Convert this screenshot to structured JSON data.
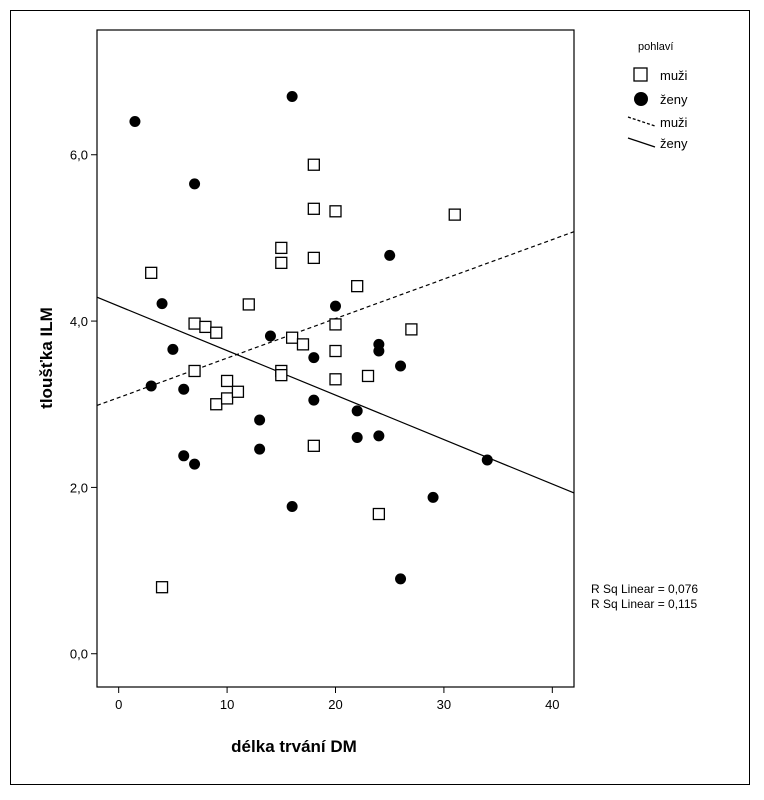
{
  "chart_data": {
    "type": "scatter",
    "xlabel": "délka trvání DM",
    "ylabel": "tloušťka ILM",
    "xlim": [
      -2,
      42
    ],
    "ylim": [
      -0.4,
      7.5
    ],
    "x_ticks": [
      0,
      10,
      20,
      30,
      40
    ],
    "y_ticks": [
      0.0,
      2.0,
      4.0,
      6.0
    ],
    "x_tick_labels": [
      "0",
      "10",
      "20",
      "30",
      "40"
    ],
    "y_tick_labels": [
      "0,0",
      "2,0",
      "4,0",
      "6,0"
    ],
    "grid": false,
    "legend": {
      "title": "pohlaví",
      "position": "right",
      "markers": [
        {
          "label": "muži",
          "symbol": "open-square"
        },
        {
          "label": "ženy",
          "symbol": "filled-circle"
        }
      ],
      "lines": [
        {
          "label": "muži",
          "style": "dashed"
        },
        {
          "label": "ženy",
          "style": "solid"
        }
      ]
    },
    "series": [
      {
        "name": "muži",
        "marker": "open-square",
        "points": [
          [
            3,
            4.58
          ],
          [
            4,
            0.8
          ],
          [
            7,
            3.97
          ],
          [
            7,
            3.4
          ],
          [
            8,
            3.93
          ],
          [
            9,
            3.86
          ],
          [
            9,
            3.0
          ],
          [
            10,
            3.28
          ],
          [
            10,
            3.07
          ],
          [
            11,
            3.15
          ],
          [
            12,
            4.2
          ],
          [
            15,
            4.88
          ],
          [
            15,
            4.7
          ],
          [
            15,
            3.4
          ],
          [
            15,
            3.35
          ],
          [
            16,
            3.8
          ],
          [
            17,
            3.72
          ],
          [
            18,
            5.88
          ],
          [
            18,
            5.35
          ],
          [
            18,
            4.76
          ],
          [
            18,
            2.5
          ],
          [
            20,
            5.32
          ],
          [
            20,
            3.96
          ],
          [
            20,
            3.64
          ],
          [
            20,
            3.3
          ],
          [
            22,
            4.42
          ],
          [
            23,
            3.34
          ],
          [
            24,
            1.68
          ],
          [
            27,
            3.9
          ],
          [
            31,
            5.28
          ]
        ],
        "fit": {
          "type": "linear",
          "intercept": 3.08,
          "slope": 0.0475,
          "style": "dashed"
        }
      },
      {
        "name": "ženy",
        "marker": "filled-circle",
        "points": [
          [
            1.5,
            6.4
          ],
          [
            3,
            3.22
          ],
          [
            4,
            4.21
          ],
          [
            5,
            3.66
          ],
          [
            6,
            3.18
          ],
          [
            6,
            2.38
          ],
          [
            7,
            5.65
          ],
          [
            7,
            2.28
          ],
          [
            13,
            2.81
          ],
          [
            13,
            2.46
          ],
          [
            14,
            3.82
          ],
          [
            16,
            6.7
          ],
          [
            16,
            1.77
          ],
          [
            18,
            3.56
          ],
          [
            18,
            3.05
          ],
          [
            20,
            4.18
          ],
          [
            22,
            2.92
          ],
          [
            22,
            2.6
          ],
          [
            24,
            3.72
          ],
          [
            24,
            3.64
          ],
          [
            24,
            2.62
          ],
          [
            25,
            4.79
          ],
          [
            26,
            3.46
          ],
          [
            26,
            0.9
          ],
          [
            29,
            1.88
          ],
          [
            34,
            2.33
          ]
        ],
        "fit": {
          "type": "linear",
          "intercept": 4.18,
          "slope": -0.0535,
          "style": "solid"
        }
      }
    ],
    "annotations": [
      "R Sq Linear = 0,076",
      "R Sq Linear = 0,115"
    ]
  }
}
